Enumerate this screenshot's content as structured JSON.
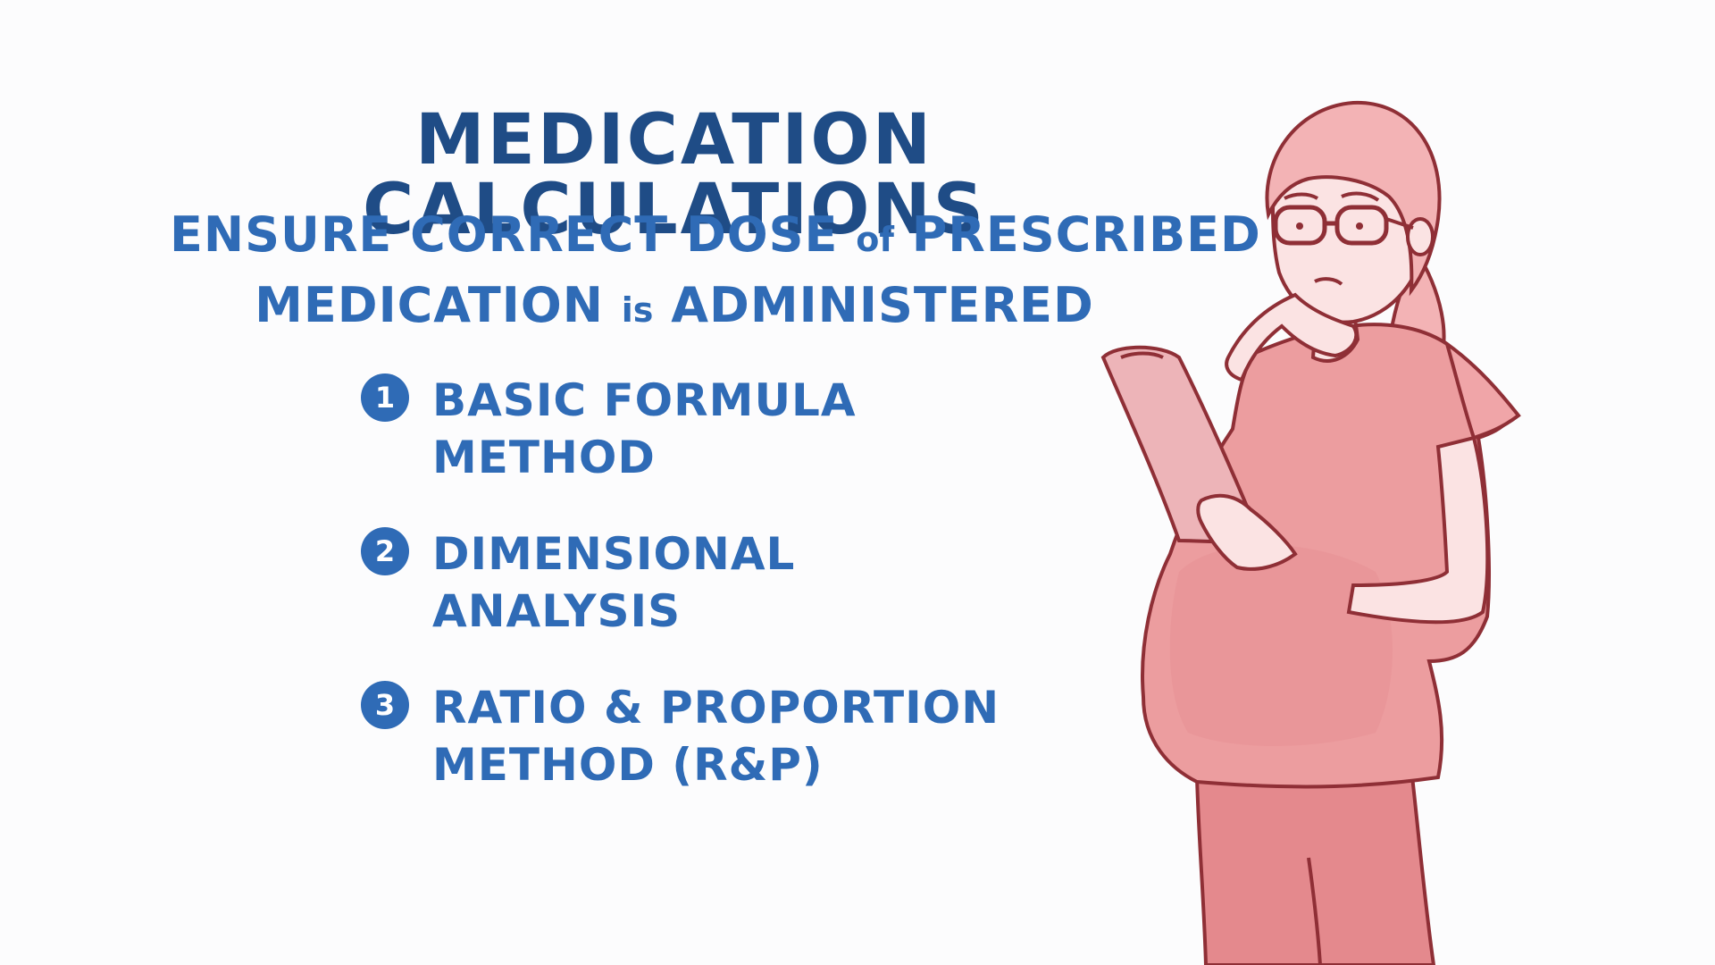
{
  "slide": {
    "title": "MEDICATION CALCULATIONS",
    "subtitle": {
      "line1_a": "ENSURE CORRECT DOSE",
      "line1_b": "of",
      "line1_c": "PRESCRIBED",
      "line2_a": "MEDICATION",
      "line2_b": "is",
      "line2_c": "ADMINISTERED"
    },
    "methods": [
      {
        "number": "1",
        "label": "BASIC FORMULA METHOD"
      },
      {
        "number": "2",
        "label": "DIMENSIONAL ANALYSIS"
      },
      {
        "number": "3",
        "label": "RATIO & PROPORTION\nMETHOD (R&P)"
      }
    ],
    "illustration": {
      "subject": "nurse-with-clipboard-illustration"
    },
    "colors": {
      "title": "#1f4c86",
      "text": "#2f6bb6",
      "scrubs": "#e89a9c",
      "outline": "#8f2f36",
      "skin": "#fbe3e3"
    }
  }
}
